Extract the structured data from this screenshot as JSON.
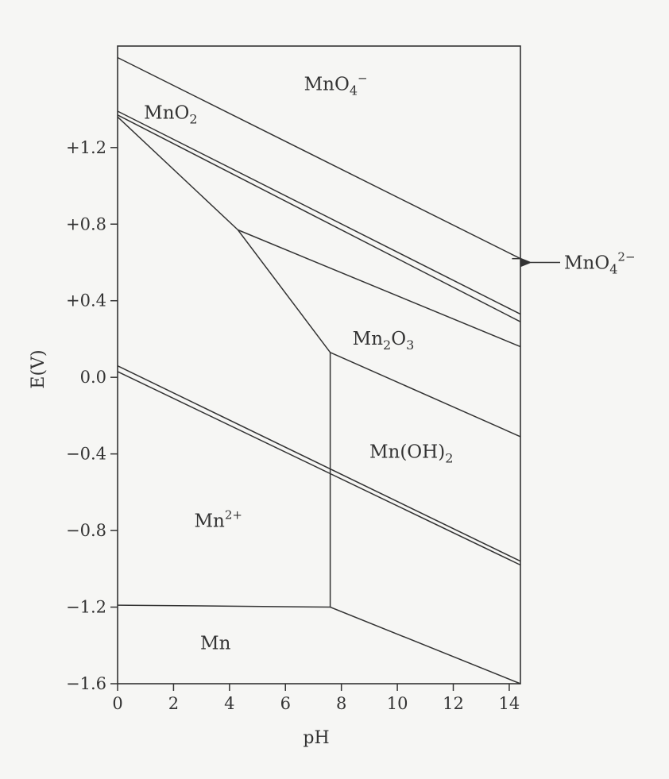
{
  "chart_data": {
    "type": "line",
    "title": "",
    "xlabel": "pH",
    "ylabel": "E(V)",
    "xlim": [
      0,
      14.4
    ],
    "ylim": [
      -1.6,
      1.73
    ],
    "x_ticks": [
      0,
      2,
      4,
      6,
      8,
      10,
      12,
      14
    ],
    "y_ticks": [
      {
        "value": 1.2,
        "label": "+1.2"
      },
      {
        "value": 0.8,
        "label": "+0.8"
      },
      {
        "value": 0.4,
        "label": "+0.4"
      },
      {
        "value": 0.0,
        "label": "0.0"
      },
      {
        "value": -0.4,
        "label": "−0.4"
      },
      {
        "value": -0.8,
        "label": "−0.8"
      },
      {
        "value": -1.2,
        "label": "−1.2"
      },
      {
        "value": -1.6,
        "label": "−1.6"
      }
    ],
    "grid": false,
    "boundaries": [
      {
        "points": [
          [
            0,
            1.67
          ],
          [
            14.4,
            0.62
          ]
        ]
      },
      {
        "points": [
          [
            14.1,
            0.62
          ],
          [
            14.4,
            0.62
          ]
        ]
      },
      {
        "points": [
          [
            0,
            1.39
          ],
          [
            14.4,
            0.33
          ]
        ]
      },
      {
        "points": [
          [
            0,
            1.37
          ],
          [
            14.4,
            0.29
          ]
        ]
      },
      {
        "points": [
          [
            0,
            1.36
          ],
          [
            4.3,
            0.77
          ],
          [
            7.6,
            0.13
          ]
        ]
      },
      {
        "points": [
          [
            4.3,
            0.77
          ],
          [
            14.4,
            0.16
          ]
        ]
      },
      {
        "points": [
          [
            7.6,
            0.13
          ],
          [
            14.4,
            -0.31
          ]
        ]
      },
      {
        "points": [
          [
            7.6,
            0.13
          ],
          [
            7.6,
            -1.2
          ]
        ]
      },
      {
        "points": [
          [
            0,
            0.06
          ],
          [
            14.4,
            -0.96
          ]
        ]
      },
      {
        "points": [
          [
            0,
            0.03
          ],
          [
            14.4,
            -0.98
          ]
        ]
      },
      {
        "points": [
          [
            0,
            -1.19
          ],
          [
            7.6,
            -1.2
          ],
          [
            14.4,
            -1.6
          ]
        ]
      }
    ],
    "regions": [
      {
        "base": "MnO",
        "sub": "4",
        "sup": "−",
        "x": 7.8,
        "y": 1.5
      },
      {
        "base": "MnO",
        "sub": "2",
        "sup": "",
        "x": 1.9,
        "y": 1.35
      },
      {
        "base": "Mn",
        "sub": "2",
        "sup": "",
        "tail": "O",
        "sub2": "3",
        "x": 9.5,
        "y": 0.17
      },
      {
        "base": "Mn(OH)",
        "sub": "2",
        "sup": "",
        "x": 10.5,
        "y": -0.42
      },
      {
        "base": "Mn",
        "sub": "",
        "sup": "2+",
        "x": 3.6,
        "y": -0.78
      },
      {
        "base": "Mn",
        "sub": "",
        "sup": "",
        "x": 3.5,
        "y": -1.42
      }
    ],
    "annotation": {
      "base": "MnO",
      "sub": "4",
      "sup": "2−",
      "x": 14.4,
      "y": 0.6
    }
  }
}
